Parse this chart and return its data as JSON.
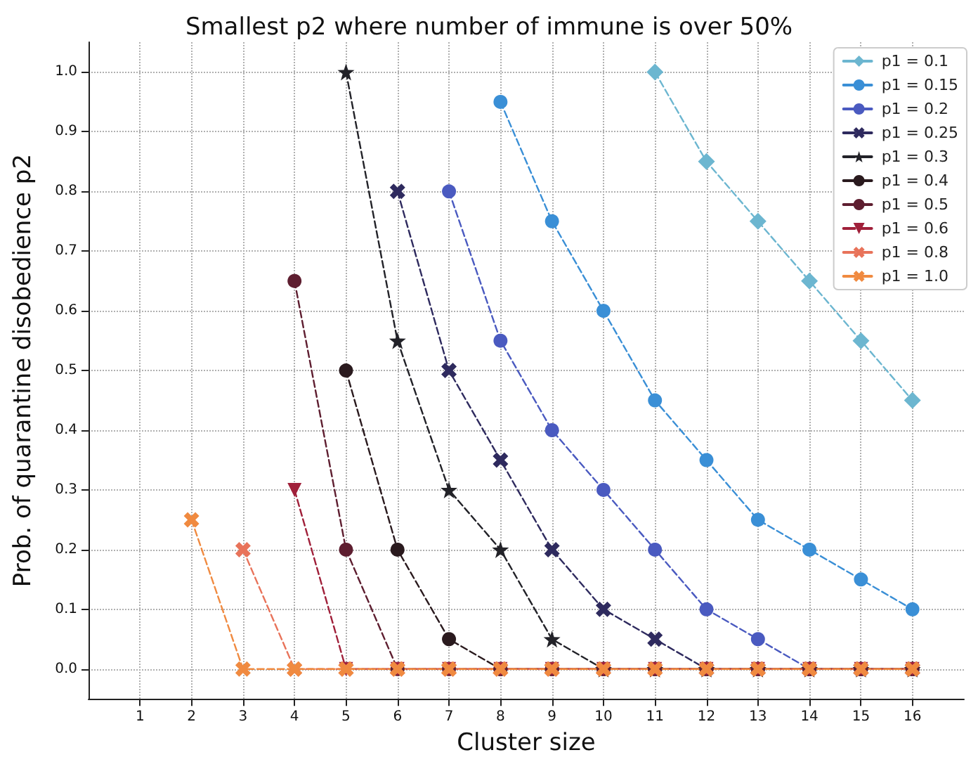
{
  "chart_data": {
    "type": "line",
    "title": "Smallest p2 where number of immune is over 50%",
    "xlabel": "Cluster size",
    "ylabel": "Prob. of quarantine disobedience p2",
    "xlim": [
      0,
      17
    ],
    "xticks": [
      1,
      2,
      3,
      4,
      5,
      6,
      7,
      8,
      9,
      10,
      11,
      12,
      13,
      14,
      15,
      16
    ],
    "ylim": [
      -0.05,
      1.05
    ],
    "yticks": [
      {
        "value": 0,
        "label": "0.0"
      },
      0.1,
      0.2,
      0.3,
      0.4,
      0.5,
      0.6,
      0.7,
      0.8,
      0.9,
      {
        "value": 1,
        "label": "1.0"
      }
    ],
    "grid": true,
    "legend": "top right",
    "line_style": "dashed",
    "series": [
      {
        "name": "p1 = 0.1",
        "color": "#6cb6d0",
        "marker": "diamond",
        "x": [
          11,
          12,
          13,
          14,
          15,
          16
        ],
        "values": [
          1.0,
          0.85,
          0.75,
          0.65,
          0.55,
          0.45
        ]
      },
      {
        "name": "p1 = 0.15",
        "color": "#3a8fd6",
        "marker": "circle",
        "x": [
          8,
          9,
          10,
          11,
          12,
          13,
          14,
          15,
          16
        ],
        "values": [
          0.95,
          0.75,
          0.6,
          0.45,
          0.35,
          0.25,
          0.2,
          0.15,
          0.1
        ]
      },
      {
        "name": "p1 = 0.2",
        "color": "#4a5ac0",
        "marker": "circle",
        "x": [
          7,
          8,
          9,
          10,
          11,
          12,
          13,
          14,
          15,
          16
        ],
        "values": [
          0.8,
          0.55,
          0.4,
          0.3,
          0.2,
          0.1,
          0.05,
          0,
          0,
          0
        ]
      },
      {
        "name": "p1 = 0.25",
        "color": "#2e2a5e",
        "marker": "cross",
        "x": [
          6,
          7,
          8,
          9,
          10,
          11,
          12,
          13,
          14,
          15,
          16
        ],
        "values": [
          0.8,
          0.5,
          0.35,
          0.2,
          0.1,
          0.05,
          0,
          0,
          0,
          0,
          0
        ]
      },
      {
        "name": "p1 = 0.3",
        "color": "#222228",
        "marker": "star",
        "x": [
          5,
          6,
          7,
          8,
          9,
          10,
          11,
          12,
          13,
          14,
          15,
          16
        ],
        "values": [
          1.0,
          0.55,
          0.3,
          0.2,
          0.05,
          0,
          0,
          0,
          0,
          0,
          0,
          0
        ]
      },
      {
        "name": "p1 = 0.4",
        "color": "#2a1a1e",
        "marker": "circle",
        "x": [
          5,
          6,
          7,
          8,
          9,
          10,
          11,
          12,
          13,
          14,
          15,
          16
        ],
        "values": [
          0.5,
          0.2,
          0.05,
          0,
          0,
          0,
          0,
          0,
          0,
          0,
          0,
          0
        ]
      },
      {
        "name": "p1 = 0.5",
        "color": "#5e1e30",
        "marker": "circle",
        "x": [
          4,
          5,
          6,
          7,
          8,
          9,
          10,
          11,
          12,
          13,
          14,
          15,
          16
        ],
        "values": [
          0.65,
          0.2,
          0,
          0,
          0,
          0,
          0,
          0,
          0,
          0,
          0,
          0,
          0
        ]
      },
      {
        "name": "p1 = 0.6",
        "color": "#a0203a",
        "marker": "triangle_down",
        "x": [
          4,
          5,
          6,
          7,
          8,
          9,
          10,
          11,
          12,
          13,
          14,
          15,
          16
        ],
        "values": [
          0.3,
          0,
          0,
          0,
          0,
          0,
          0,
          0,
          0,
          0,
          0,
          0,
          0
        ]
      },
      {
        "name": "p1 = 0.8",
        "color": "#e8735a",
        "marker": "cross",
        "x": [
          3,
          4,
          5,
          6,
          7,
          8,
          9,
          10,
          11,
          12,
          13,
          14,
          15,
          16
        ],
        "values": [
          0.2,
          0,
          0,
          0,
          0,
          0,
          0,
          0,
          0,
          0,
          0,
          0,
          0,
          0
        ]
      },
      {
        "name": "p1 = 1.0",
        "color": "#f08a40",
        "marker": "cross",
        "x": [
          2,
          3,
          4,
          5,
          6,
          7,
          8,
          9,
          10,
          11,
          12,
          13,
          14,
          15,
          16
        ],
        "values": [
          0.25,
          0,
          0,
          0,
          0,
          0,
          0,
          0,
          0,
          0,
          0,
          0,
          0,
          0,
          0
        ]
      }
    ]
  }
}
